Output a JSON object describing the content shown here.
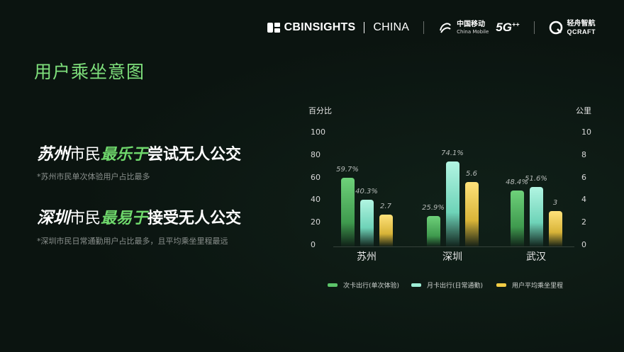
{
  "header": {
    "cb_brand": "CBINSIGHTS",
    "cb_region": "CHINA",
    "cm_name_cn": "中国移动",
    "cm_name_en": "China Mobile",
    "cm_5g": "5G",
    "cm_5g_sup": "++",
    "qc_name_cn": "轻舟智航",
    "qc_name_en": "QCRAFT"
  },
  "page_title": "用户乘坐意图",
  "statements": [
    {
      "city": "苏州",
      "mid": "市民",
      "verb": "最乐于",
      "rest": "尝试无人公交",
      "note": "*苏州市民单次体验用户占比最多"
    },
    {
      "city": "深圳",
      "mid": "市民",
      "verb": "最易于",
      "rest": "接受无人公交",
      "note": "*深圳市民日常通勤用户占比最多，且平均乘坐里程最远"
    }
  ],
  "chart_data": {
    "type": "bar",
    "categories": [
      "苏州",
      "深圳",
      "武汉"
    ],
    "series": [
      {
        "name": "次卡出行(单次体验)",
        "axis": "left",
        "values": [
          59.7,
          25.9,
          48.4
        ],
        "labels": [
          "59.7%",
          "25.9%",
          "48.4%"
        ],
        "color": "#5cc46a"
      },
      {
        "name": "月卡出行(日常通勤)",
        "axis": "left",
        "values": [
          40.3,
          74.1,
          51.6
        ],
        "labels": [
          "40.3%",
          "74.1%",
          "51.6%"
        ],
        "color": "#9eeed6"
      },
      {
        "name": "用户平均乘坐里程",
        "axis": "right",
        "values": [
          2.7,
          5.6,
          3
        ],
        "labels": [
          "2.7",
          "5.6",
          "3"
        ],
        "color": "#f2cc45"
      }
    ],
    "ylabel": "百分比",
    "y2label": "公里",
    "ylim": [
      0,
      100
    ],
    "y2lim": [
      0,
      10
    ],
    "yticks": [
      "0",
      "20",
      "40",
      "60",
      "80",
      "100"
    ],
    "y2ticks": [
      "0",
      "2",
      "4",
      "6",
      "8",
      "10"
    ],
    "legend_position": "bottom",
    "grid": false
  }
}
